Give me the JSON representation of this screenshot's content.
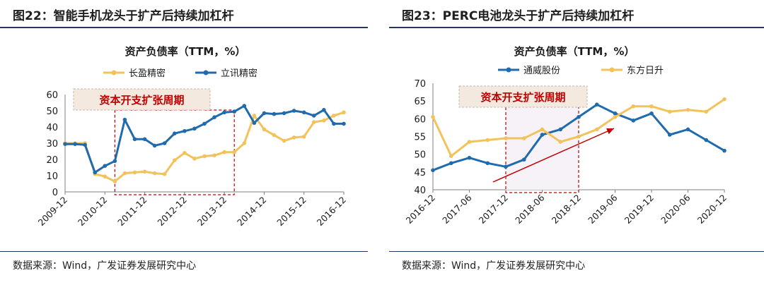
{
  "colors": {
    "navy": "#1f6bad",
    "gold": "#f2c35a",
    "annotation_text": "#c00000",
    "annotation_fill": "#f4e9df",
    "dash": "#c00000",
    "arrow": "#c00000",
    "rule": "#1f3864"
  },
  "source_text": "数据来源：Wind，广发证券发展研究中心",
  "left": {
    "fig_title": "图22：智能手机龙头于扩产后持续加杠杆",
    "source": "数据来源：Wind，广发证券发展研究中心",
    "chart_data": {
      "type": "line",
      "title": "资产负债率（TTM，%）",
      "ylim": [
        0,
        60
      ],
      "yticks": [
        "0",
        "10",
        "20",
        "30",
        "40",
        "50",
        "60"
      ],
      "xtick_labels": [
        "2009-12",
        "2010-12",
        "2011-12",
        "2012-12",
        "2013-12",
        "2014-12",
        "2015-12",
        "2016-12"
      ],
      "quarters": 29,
      "legend": [
        "长盈精密",
        "立讯精密"
      ],
      "annotation": "资本开支扩张周期",
      "series": [
        {
          "name": "长盈精密",
          "color": "#f2c35a",
          "values": [
            30,
            30,
            30,
            11,
            9.5,
            6.5,
            11.5,
            12,
            12.5,
            11.5,
            11,
            19.5,
            24,
            20.5,
            22,
            22.5,
            24.5,
            24.5,
            30,
            47,
            38.5,
            35,
            31.5,
            33.5,
            34,
            43,
            44,
            47,
            49
          ]
        },
        {
          "name": "立讯精密",
          "color": "#1f6bad",
          "values": [
            29.5,
            29.5,
            29,
            12,
            16,
            19,
            44.5,
            32.5,
            32.5,
            28.5,
            30,
            36,
            37.5,
            39,
            42,
            46,
            49,
            49.5,
            53,
            42.5,
            48.5,
            48,
            48.5,
            50,
            49,
            47,
            50.5,
            42,
            42
          ]
        }
      ]
    }
  },
  "right": {
    "fig_title": "图23：PERC电池龙头于扩产后持续加杠杆",
    "source": "数据来源：Wind，广发证券发展研究中心",
    "chart_data": {
      "type": "line",
      "title": "资产负债率（TTM，%）",
      "ylim": [
        40,
        70
      ],
      "yticks": [
        "40",
        "45",
        "50",
        "55",
        "60",
        "65",
        "70"
      ],
      "xtick_labels": [
        "2016-12",
        "2017-06",
        "2017-12",
        "2018-06",
        "2018-12",
        "2019-06",
        "2019-12",
        "2020-06",
        "2020-12"
      ],
      "quarters": 17,
      "legend": [
        "通威股份",
        "东方日升"
      ],
      "annotation": "资本开支扩张周期",
      "series": [
        {
          "name": "通威股份",
          "color": "#1f6bad",
          "values": [
            45.5,
            47.5,
            49,
            47.5,
            46.5,
            48.5,
            55.5,
            57,
            60.5,
            64,
            61.5,
            59.5,
            61.5,
            55.5,
            57,
            54,
            51
          ]
        },
        {
          "name": "东方日升",
          "color": "#f2c35a",
          "values": [
            60.5,
            49.5,
            53.5,
            54,
            54.5,
            54.5,
            57,
            53.5,
            55,
            57,
            60.5,
            63.5,
            63.5,
            62,
            62.5,
            62,
            65.5
          ]
        }
      ]
    }
  }
}
